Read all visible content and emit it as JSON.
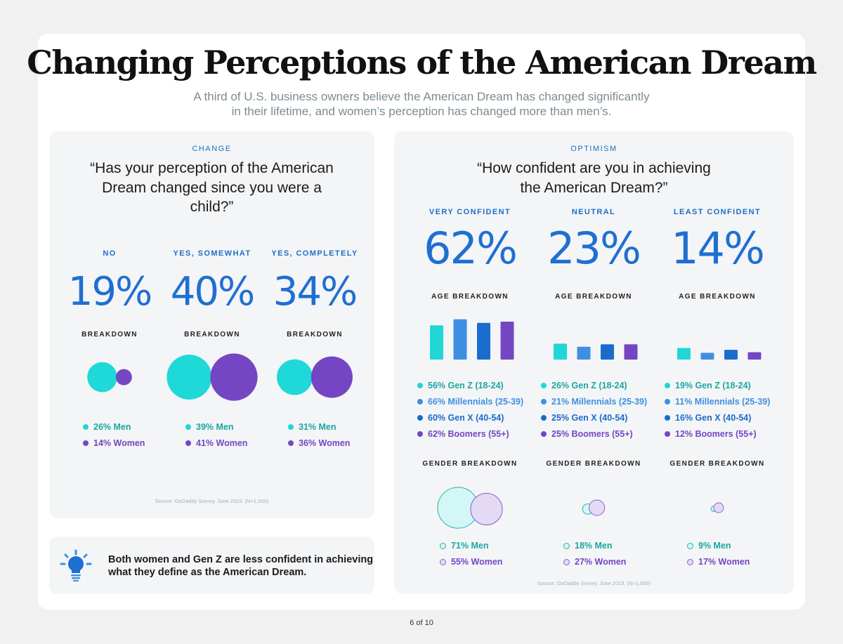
{
  "title": "Changing Perceptions of the American Dream",
  "subtitle_lines": [
    "A third of U.S. business owners believe the American Dream has changed significantly",
    "in their lifetime, and women’s perception has changed more than men’s."
  ],
  "left": {
    "kicker": "CHANGE",
    "question_lines": [
      "“Has your perception of the American",
      "Dream changed since you were a",
      "child?”"
    ],
    "columns": [
      {
        "label": "NO",
        "pct": "19%",
        "sub": "BREAKDOWN",
        "legend": [
          "26% Men",
          "14% Women"
        ]
      },
      {
        "label": "YES, SOMEWHAT",
        "pct": "40%",
        "sub": "BREAKDOWN",
        "legend": [
          "39% Men",
          "41% Women"
        ]
      },
      {
        "label": "YES, COMPLETELY",
        "pct": "34%",
        "sub": "BREAKDOWN",
        "legend": [
          "31% Men",
          "36% Women"
        ]
      }
    ],
    "source": "Source: GoDaddy Survey. June 2023. (N>1,000)"
  },
  "tip": {
    "icon": "lightbulb-icon",
    "text_lines": [
      "Both women and Gen Z are less confident in achieving",
      "what they define as the American Dream."
    ]
  },
  "right": {
    "kicker": "OPTIMISM",
    "question_lines": [
      "“How confident are you in achieving",
      "the American Dream?”"
    ],
    "columns": [
      {
        "label": "VERY CONFIDENT",
        "pct": "62%",
        "age_title": "AGE BREAKDOWN",
        "age_legend": [
          "56% Gen Z (18-24)",
          "66% Millennials (25-39)",
          "60% Gen X (40-54)",
          "62% Boomers (55+)"
        ],
        "gender_title": "GENDER BREAKDOWN",
        "gender_legend": [
          "71% Men",
          "55% Women"
        ]
      },
      {
        "label": "NEUTRAL",
        "pct": "23%",
        "age_title": "AGE BREAKDOWN",
        "age_legend": [
          "26% Gen Z (18-24)",
          "21% Millennials (25-39)",
          "25% Gen X (40-54)",
          "25% Boomers (55+)"
        ],
        "gender_title": "GENDER BREAKDOWN",
        "gender_legend": [
          "18% Men",
          "27% Women"
        ]
      },
      {
        "label": "LEAST CONFIDENT",
        "pct": "14%",
        "age_title": "AGE BREAKDOWN",
        "age_legend": [
          "19% Gen Z (18-24)",
          "11% Millennials (25-39)",
          "16% Gen X (40-54)",
          "12% Boomers (55+)"
        ],
        "gender_title": "GENDER BREAKDOWN",
        "gender_legend": [
          "9% Men",
          "17% Women"
        ]
      }
    ],
    "source": "Source: GoDaddy Survey. June 2023. (N>1,000)"
  },
  "footer": "6 of 10",
  "colors": {
    "men": "#1fd8d8",
    "women": "#7446c4",
    "gen_z": "#22d6d6",
    "millennials": "#3e8fe2",
    "gen_x": "#1a6ccc",
    "boomers": "#7446c4",
    "headline_pct": "#1f6fd1",
    "men_light": "#d3f7f7",
    "women_light": "#e4daf5"
  },
  "chart_data": [
    {
      "type": "bubble",
      "categories": [
        "NO",
        "YES, SOMEWHAT",
        "YES, COMPLETELY"
      ],
      "series": [
        {
          "name": "Men",
          "values": [
            26,
            39,
            31
          ]
        },
        {
          "name": "Women",
          "values": [
            14,
            41,
            36
          ]
        }
      ]
    },
    {
      "type": "bar",
      "categories": [
        "Gen Z (18-24)",
        "Millennials (25-39)",
        "Gen X (40-54)",
        "Boomers (55+)"
      ],
      "series": [
        {
          "name": "VERY CONFIDENT",
          "values": [
            56,
            66,
            60,
            62
          ]
        },
        {
          "name": "NEUTRAL",
          "values": [
            26,
            21,
            25,
            25
          ]
        },
        {
          "name": "LEAST CONFIDENT",
          "values": [
            19,
            11,
            16,
            12
          ]
        }
      ]
    },
    {
      "type": "bubble",
      "categories": [
        "VERY CONFIDENT",
        "NEUTRAL",
        "LEAST CONFIDENT"
      ],
      "series": [
        {
          "name": "Men",
          "values": [
            71,
            18,
            9
          ]
        },
        {
          "name": "Women",
          "values": [
            55,
            27,
            17
          ]
        }
      ]
    }
  ]
}
